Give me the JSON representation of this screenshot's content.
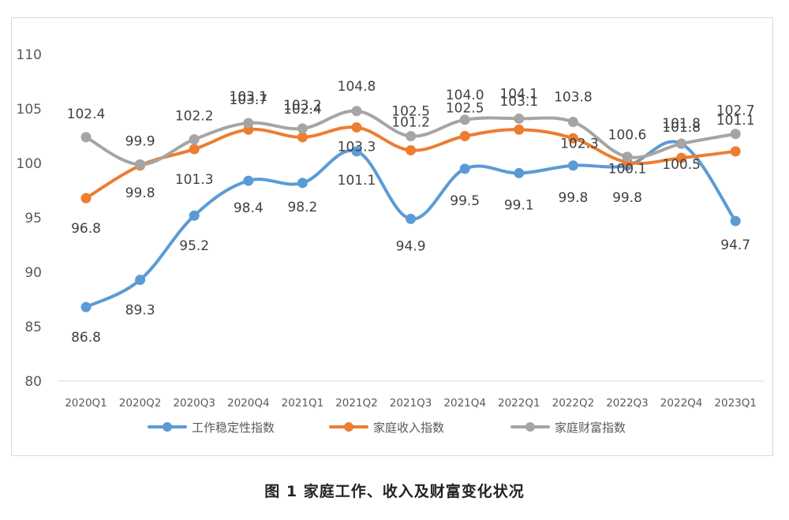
{
  "caption": "图 1 家庭工作、收入及财富变化状况",
  "chart_data": {
    "type": "line",
    "categories": [
      "2020Q1",
      "2020Q2",
      "2020Q3",
      "2020Q4",
      "2021Q1",
      "2021Q2",
      "2021Q3",
      "2021Q4",
      "2022Q1",
      "2022Q2",
      "2022Q3",
      "2022Q4",
      "2023Q1"
    ],
    "ylim": [
      80,
      110
    ],
    "yticks": [
      80,
      85,
      90,
      95,
      100,
      105,
      110
    ],
    "grid": false,
    "legend_position": "bottom",
    "series": [
      {
        "name": "工作稳定性指数",
        "color": "#5B9BD5",
        "values": [
          86.8,
          89.3,
          95.2,
          98.4,
          98.2,
          101.1,
          94.9,
          99.5,
          99.1,
          99.8,
          99.8,
          101.8,
          94.7
        ]
      },
      {
        "name": "家庭收入指数",
        "color": "#ED7D31",
        "values": [
          96.8,
          99.8,
          101.3,
          103.1,
          102.4,
          103.3,
          101.2,
          102.5,
          103.1,
          102.3,
          100.1,
          100.5,
          101.1
        ]
      },
      {
        "name": "家庭财富指数",
        "color": "#A5A5A5",
        "values": [
          102.4,
          99.9,
          102.2,
          103.7,
          103.2,
          104.8,
          102.5,
          104.0,
          104.1,
          103.8,
          100.6,
          101.8,
          102.7
        ]
      }
    ]
  }
}
